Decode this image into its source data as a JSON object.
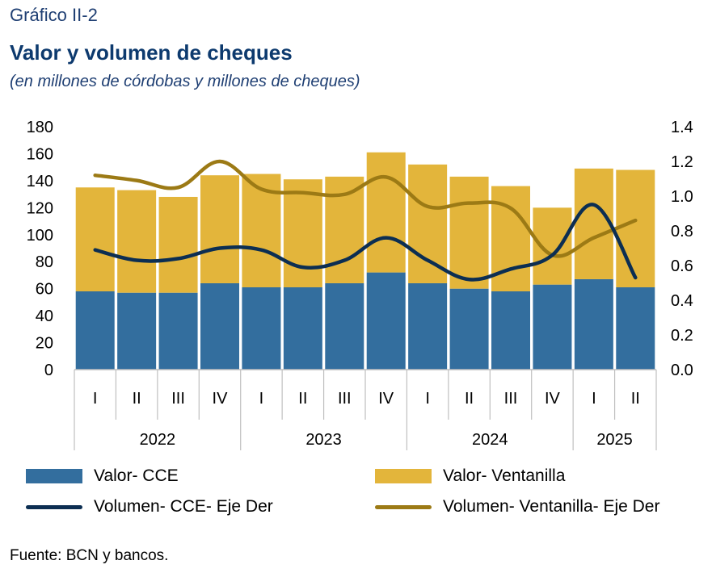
{
  "header": {
    "label": "Gráfico II-2",
    "title": "Valor y volumen de cheques",
    "subtitle": "(en millones de córdobas y millones de cheques)"
  },
  "source": "Fuente: BCN y bancos.",
  "chart_data": {
    "type": "bar",
    "categories": [
      "I",
      "II",
      "III",
      "IV",
      "I",
      "II",
      "III",
      "IV",
      "I",
      "II",
      "III",
      "IV",
      "I",
      "II"
    ],
    "groups": [
      {
        "label": "2022",
        "count": 4
      },
      {
        "label": "2023",
        "count": 4
      },
      {
        "label": "2024",
        "count": 4
      },
      {
        "label": "2025",
        "count": 2
      }
    ],
    "y_left": {
      "min": 0,
      "max": 180,
      "step": 20,
      "tick_labels": [
        "0",
        "20",
        "40",
        "60",
        "80",
        "100",
        "120",
        "140",
        "160",
        "180"
      ]
    },
    "y_right": {
      "min": 0,
      "max": 1.4,
      "step": 0.2,
      "tick_labels": [
        "0.0",
        "0.2",
        "0.4",
        "0.6",
        "0.8",
        "1.0",
        "1.2",
        "1.4"
      ]
    },
    "grid": false,
    "legend_position": "bottom",
    "series": [
      {
        "name": "Valor- CCE",
        "kind": "stacked-bar",
        "axis": "left",
        "color": "#336e9e",
        "values": [
          58,
          57,
          57,
          64,
          61,
          61,
          64,
          72,
          64,
          60,
          58,
          63,
          67,
          61
        ]
      },
      {
        "name": "Valor- Ventanilla",
        "kind": "stacked-bar",
        "axis": "left",
        "color": "#e3b53b",
        "values": [
          77,
          76,
          71,
          80,
          84,
          80,
          79,
          89,
          88,
          83,
          78,
          57,
          82,
          87
        ]
      },
      {
        "name": "Volumen- CCE- Eje Der",
        "kind": "line",
        "axis": "right",
        "color": "#0c2e52",
        "values": [
          0.69,
          0.63,
          0.64,
          0.7,
          0.69,
          0.59,
          0.63,
          0.76,
          0.63,
          0.52,
          0.58,
          0.66,
          0.95,
          0.53
        ]
      },
      {
        "name": "Volumen- Ventanilla- Eje Der",
        "kind": "line",
        "axis": "right",
        "color": "#9c7a15",
        "values": [
          1.12,
          1.09,
          1.05,
          1.2,
          1.04,
          1.02,
          1.01,
          1.11,
          0.94,
          0.96,
          0.93,
          0.66,
          0.76,
          0.86
        ]
      }
    ]
  }
}
